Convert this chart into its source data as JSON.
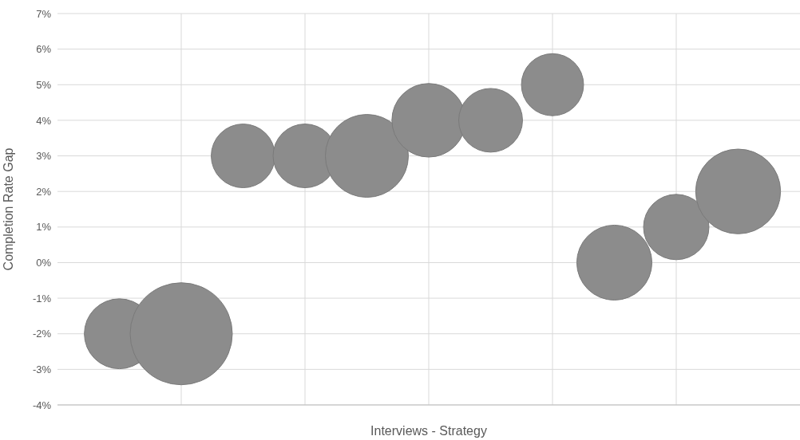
{
  "chart_data": {
    "type": "bubble",
    "xlabel": "Interviews - Strategy",
    "ylabel": "Completion Rate Gap",
    "categories": [
      null,
      null,
      null,
      null,
      null,
      null,
      null,
      null,
      null,
      null,
      null
    ],
    "values": [
      -2,
      -2,
      3,
      3,
      3,
      4,
      4,
      5,
      0,
      1,
      2
    ],
    "sizes": [
      0.47,
      1,
      0.39,
      0.39,
      0.66,
      0.52,
      0.39,
      0.37,
      0.54,
      0.41,
      0.69
    ],
    "color": "#8c8c8c",
    "ylim": [
      -4,
      7
    ],
    "yticks": [
      {
        "value": -4,
        "label": "-4%"
      },
      {
        "value": -3,
        "label": "-3%"
      },
      {
        "value": -2,
        "label": "-2%"
      },
      {
        "value": -1,
        "label": "-1%"
      },
      {
        "value": 0,
        "label": "0%"
      },
      {
        "value": 1,
        "label": "1%"
      },
      {
        "value": 2,
        "label": "2%"
      },
      {
        "value": 3,
        "label": "3%"
      },
      {
        "value": 4,
        "label": "4%"
      },
      {
        "value": 5,
        "label": "5%"
      },
      {
        "value": 6,
        "label": "6%"
      },
      {
        "value": 7,
        "label": "7%"
      }
    ],
    "grid": true
  }
}
